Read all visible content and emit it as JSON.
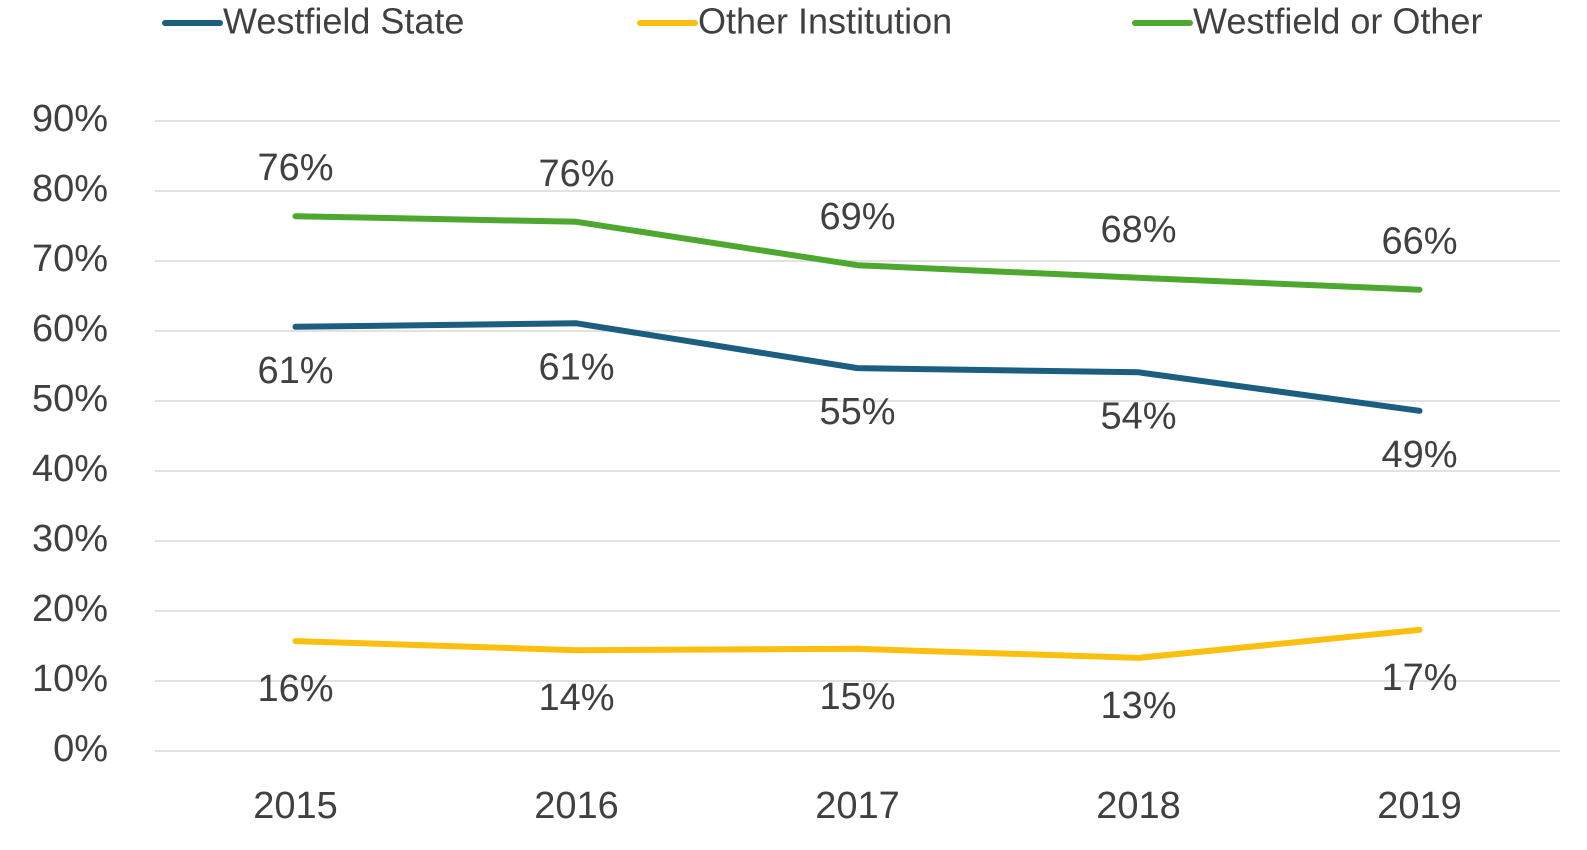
{
  "chart_data": {
    "type": "line",
    "categories": [
      "2015",
      "2016",
      "2017",
      "2018",
      "2019"
    ],
    "series": [
      {
        "name": "Westfield State",
        "color": "#1b5e7f",
        "values": [
          60.6,
          61.1,
          54.7,
          54.1,
          48.6
        ],
        "value_labels": [
          "61%",
          "61%",
          "55%",
          "54%",
          "49%"
        ]
      },
      {
        "name": "Other Institution",
        "color": "#fbbf0f",
        "values": [
          15.7,
          14.4,
          14.6,
          13.3,
          17.3
        ],
        "value_labels": [
          "16%",
          "14%",
          "15%",
          "13%",
          "17%"
        ]
      },
      {
        "name": "Westfield or Other",
        "color": "#4ea72e",
        "values": [
          76.4,
          75.6,
          69.4,
          67.6,
          65.9
        ],
        "value_labels": [
          "76%",
          "76%",
          "69%",
          "68%",
          "66%"
        ]
      }
    ],
    "ylim": [
      0,
      90
    ],
    "yticks": [
      {
        "value": 0,
        "label": "0%"
      },
      {
        "value": 10,
        "label": "10%"
      },
      {
        "value": 20,
        "label": "20%"
      },
      {
        "value": 30,
        "label": "30%"
      },
      {
        "value": 40,
        "label": "40%"
      },
      {
        "value": 50,
        "label": "50%"
      },
      {
        "value": 60,
        "label": "60%"
      },
      {
        "value": 70,
        "label": "70%"
      },
      {
        "value": 80,
        "label": "80%"
      },
      {
        "value": 90,
        "label": "90%"
      }
    ],
    "grid": true,
    "legend": "top"
  }
}
